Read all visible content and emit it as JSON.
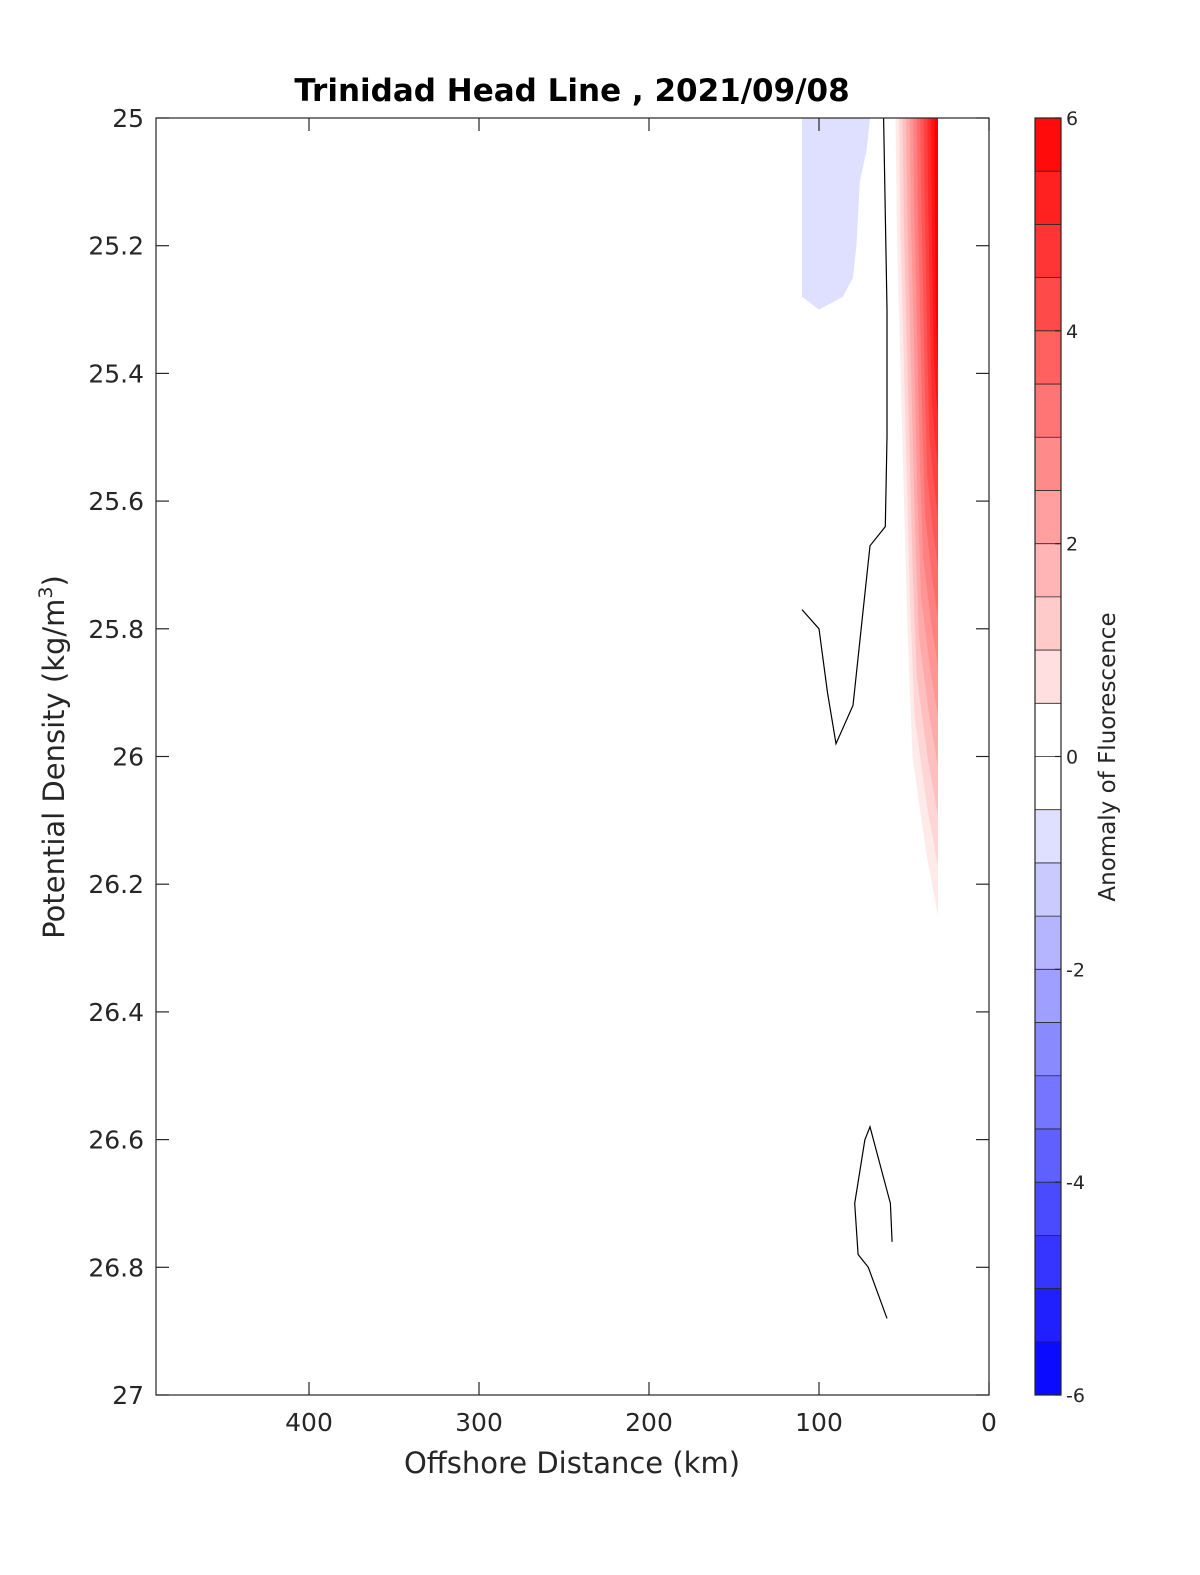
{
  "chart_data": {
    "type": "contour",
    "title": "Trinidad Head Line , 2021/09/08",
    "xlabel": "Offshore Distance (km)",
    "ylabel": "Potential Density (kg/m",
    "ylabel_sup": "3",
    "ylabel_end": ")",
    "xlim": [
      490,
      0
    ],
    "ylim": [
      25,
      27
    ],
    "x_reversed": true,
    "y_reversed": true,
    "xticks": [
      400,
      300,
      200,
      100,
      0
    ],
    "yticks": [
      25,
      25.2,
      25.4,
      25.6,
      25.8,
      26,
      26.2,
      26.4,
      26.6,
      26.8,
      27
    ],
    "xtick_labels": [
      "400",
      "300",
      "200",
      "100",
      "0"
    ],
    "ytick_labels": [
      "25",
      "25.2",
      "25.4",
      "25.6",
      "25.8",
      "26",
      "26.2",
      "26.4",
      "26.6",
      "26.8",
      "27"
    ],
    "colorbar": {
      "label": "Anomaly of Fluorescence",
      "range": [
        -6,
        6
      ],
      "step": 0.5,
      "ticks": [
        -6,
        -4,
        -2,
        0,
        2,
        4,
        6
      ],
      "tick_labels": [
        "-6",
        "-4",
        "-2",
        "0",
        "2",
        "4",
        "6"
      ],
      "low_color": "#0000ff",
      "high_color": "#ff0000",
      "mid_color": "#ffffff"
    },
    "negative_region": {
      "level": -0.75,
      "outline": [
        [
          110,
          25
        ],
        [
          70,
          25
        ],
        [
          72,
          25.05
        ],
        [
          76,
          25.1
        ],
        [
          78,
          25.2
        ],
        [
          80,
          25.25
        ],
        [
          86,
          25.28
        ],
        [
          100,
          25.3
        ],
        [
          110,
          25.28
        ]
      ]
    },
    "positive_region": {
      "boundary": [
        [
          55,
          25
        ],
        [
          54,
          25.2
        ],
        [
          52,
          25.4
        ],
        [
          50,
          25.6
        ],
        [
          48,
          25.8
        ],
        [
          45,
          26
        ],
        [
          37,
          26.15
        ],
        [
          30,
          26.25
        ],
        [
          30,
          25
        ]
      ],
      "max_value": 6
    },
    "zero_contours": [
      [
        [
          62,
          25
        ],
        [
          60,
          25.3
        ],
        [
          60,
          25.5
        ],
        [
          61,
          25.64
        ],
        [
          70,
          25.67
        ],
        [
          80,
          25.92
        ],
        [
          90,
          25.98
        ],
        [
          95,
          25.9
        ],
        [
          100,
          25.8
        ],
        [
          110,
          25.77
        ]
      ],
      [
        [
          57,
          26.76
        ],
        [
          58,
          26.7
        ],
        [
          63,
          26.65
        ],
        [
          66,
          26.62
        ],
        [
          70,
          26.58
        ],
        [
          73,
          26.6
        ],
        [
          79,
          26.7
        ],
        [
          77,
          26.78
        ],
        [
          71,
          26.8
        ],
        [
          60,
          26.88
        ]
      ]
    ]
  }
}
